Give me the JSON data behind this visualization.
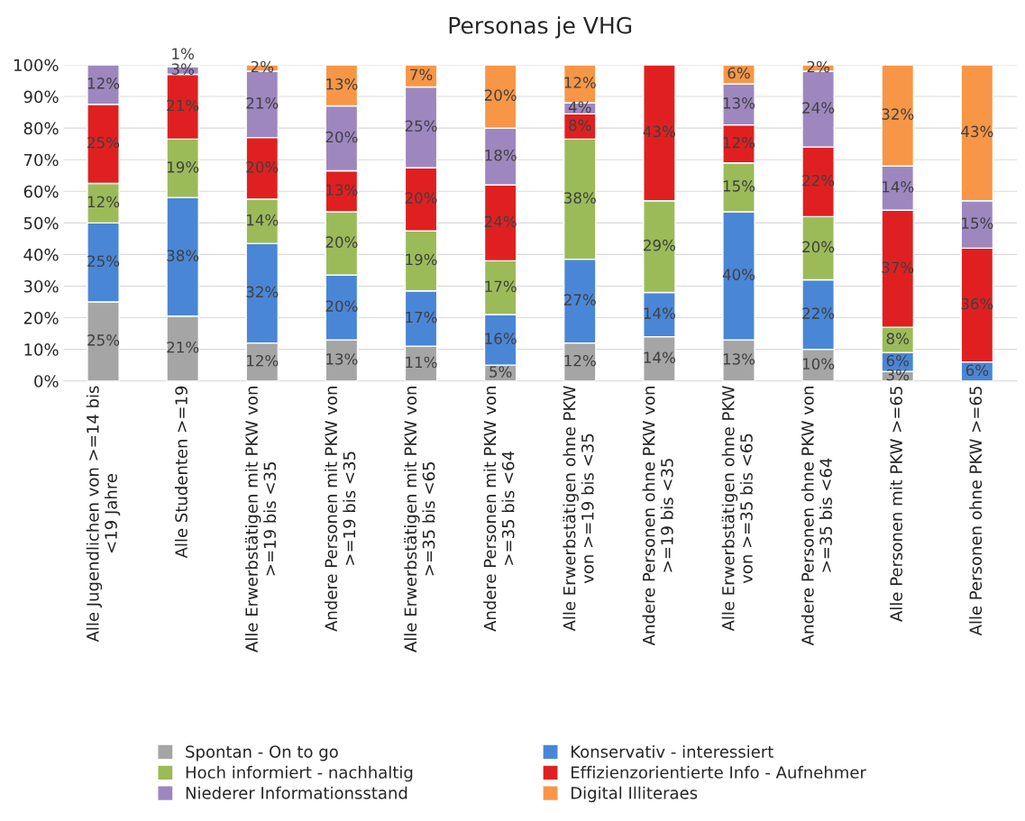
{
  "chart_data": {
    "type": "bar",
    "title": "Personas je VHG",
    "stacked": true,
    "categories": [
      "Alle Jugendlichen von >=14 bis\n<19 Jahre",
      "Alle Studenten >=19",
      "Alle Erwerbstätigen mit PKW von\n>=19 bis <35",
      "Andere Personen mit PKW von\n>=19 bis <35",
      "Alle Erwerbstätigen mit PKW von\n>=35 bis <65",
      "Andere Personen mit PKW von\n>=35 bis <64",
      "Alle Erwerbstätigen ohne PKW\nvon >=19 bis <35",
      "Andere Personen ohne PKW von\n>=19 bis <35",
      "Alle Erwerbstätigen ohne PKW\nvon >=35 bis <65",
      "Andere Personen ohne PKW von\n>=35 bis <64",
      "Alle Personen mit PKW >=65",
      "Alle Personen ohne PKW >=65"
    ],
    "series": [
      {
        "name": "Spontan - On to go",
        "color": "#a5a5a5",
        "values": [
          25,
          20.5,
          12,
          13,
          11,
          5,
          12,
          14,
          13,
          10,
          3,
          null
        ],
        "value_labels": [
          "25%",
          "21%",
          "12%",
          "13%",
          "11%",
          "5%",
          "12%",
          "14%",
          "13%",
          "10%",
          "3%",
          null
        ]
      },
      {
        "name": "Konservativ - interessiert",
        "color": "#4a86d6",
        "values": [
          25,
          37.5,
          31.5,
          20.5,
          17.5,
          16,
          26.5,
          14,
          40.5,
          22,
          6,
          6
        ],
        "value_labels": [
          "25%",
          "38%",
          "32%",
          "20%",
          "17%",
          "16%",
          "27%",
          "14%",
          "40%",
          "22%",
          "6%",
          "6%"
        ]
      },
      {
        "name": "Hoch informiert - nachhaltig",
        "color": "#9bbb59",
        "values": [
          12.5,
          18.5,
          14,
          20,
          19,
          17,
          38,
          29,
          15.5,
          20,
          8,
          null
        ],
        "value_labels": [
          "12%",
          "19%",
          "14%",
          "20%",
          "19%",
          "17%",
          "38%",
          "29%",
          "15%",
          "20%",
          "8%",
          null
        ]
      },
      {
        "name": "Effizienzorientierte Info - Aufnehmer",
        "color": "#e02020",
        "values": [
          25,
          20.5,
          19.5,
          13,
          20,
          24,
          8,
          43,
          12,
          22,
          37,
          36
        ],
        "value_labels": [
          "25%",
          "21%",
          "20%",
          "13%",
          "20%",
          "24%",
          "8%",
          "43%",
          "12%",
          "22%",
          "37%",
          "36%"
        ]
      },
      {
        "name": "Niederer Informationsstand",
        "color": "#9e87bf",
        "values": [
          12.5,
          2.5,
          21,
          20.5,
          25.5,
          18,
          3.5,
          null,
          13,
          24,
          14,
          15
        ],
        "value_labels": [
          "12%",
          "3%",
          "21%",
          "20%",
          "25%",
          "18%",
          "4%",
          null,
          "13%",
          "24%",
          "14%",
          "15%"
        ]
      },
      {
        "name": "Digital Illiteraes",
        "color": "#f79646",
        "values": [
          null,
          0.5,
          2,
          13,
          7,
          20,
          12,
          null,
          6,
          2,
          32,
          43
        ],
        "value_labels": [
          null,
          "1%",
          "2%",
          "13%",
          "7%",
          "20%",
          "12%",
          null,
          "6%",
          "2%",
          "32%",
          "43%"
        ]
      }
    ],
    "ylim": [
      0,
      100
    ],
    "yticks": [
      {
        "value": 0,
        "label": "0%"
      },
      {
        "value": 10,
        "label": "10%"
      },
      {
        "value": 20,
        "label": "20%"
      },
      {
        "value": 30,
        "label": "30%"
      },
      {
        "value": 40,
        "label": "40%"
      },
      {
        "value": 50,
        "label": "50%"
      },
      {
        "value": 60,
        "label": "60%"
      },
      {
        "value": 70,
        "label": "70%"
      },
      {
        "value": 80,
        "label": "80%"
      },
      {
        "value": 90,
        "label": "90%"
      },
      {
        "value": 100,
        "label": "100%"
      }
    ],
    "grid": "y",
    "legend": "bottom"
  }
}
